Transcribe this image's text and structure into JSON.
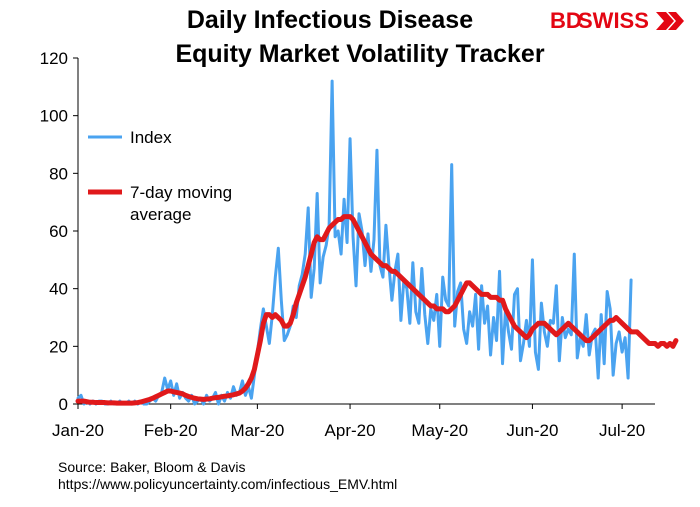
{
  "title_line1": "Daily Infectious Disease",
  "title_line2": "Equity Market Volatility Tracker",
  "logo": {
    "text_bd": "BD",
    "text_swiss": "SWISS",
    "icon": "chevron-arrows-icon",
    "color": "#e30613"
  },
  "source_line1": "Source:  Baker, Bloom & Davis",
  "source_line2": "https://www.policyuncertainty.com/infectious_EMV.html",
  "chart_data": {
    "type": "line",
    "ylim": [
      0,
      120
    ],
    "yticks": [
      0,
      20,
      40,
      60,
      80,
      100,
      120
    ],
    "xticks": [
      {
        "label": "Jan-20",
        "day": 0
      },
      {
        "label": "Feb-20",
        "day": 31
      },
      {
        "label": "Mar-20",
        "day": 60
      },
      {
        "label": "Apr-20",
        "day": 91
      },
      {
        "label": "May-20",
        "day": 121
      },
      {
        "label": "Jun-20",
        "day": 152
      },
      {
        "label": "Jul-20",
        "day": 182
      }
    ],
    "xrange": [
      0,
      193
    ],
    "grid": false,
    "legend_position": "upper-left",
    "series": [
      {
        "name": "Index",
        "color": "#4aa3f0",
        "values": [
          2,
          3,
          0,
          1,
          0,
          1,
          0,
          1,
          1,
          0,
          0,
          1,
          0,
          0,
          1,
          0,
          0,
          1,
          0,
          1,
          0,
          1,
          0,
          0,
          1,
          2,
          1,
          3,
          4,
          9,
          5,
          8,
          3,
          7,
          2,
          4,
          2,
          1,
          3,
          0,
          1,
          2,
          0,
          3,
          1,
          2,
          4,
          0,
          3,
          1,
          4,
          2,
          6,
          3,
          4,
          8,
          3,
          6,
          2,
          10,
          18,
          26,
          33,
          27,
          21,
          31,
          44,
          54,
          36,
          22,
          24,
          27,
          34,
          30,
          41,
          45,
          52,
          68,
          37,
          47,
          73,
          42,
          51,
          55,
          62,
          112,
          58,
          60,
          52,
          71,
          56,
          92,
          58,
          41,
          66,
          60,
          48,
          59,
          46,
          57,
          88,
          48,
          44,
          62,
          48,
          36,
          46,
          52,
          29,
          43,
          40,
          28,
          49,
          32,
          28,
          47,
          31,
          21,
          33,
          29,
          38,
          20,
          44,
          36,
          34,
          83,
          27,
          39,
          42,
          26,
          21,
          32,
          27,
          38,
          19,
          41,
          28,
          34,
          17,
          30,
          22,
          46,
          14,
          33,
          25,
          19,
          38,
          40,
          15,
          21,
          29,
          20,
          50,
          18,
          12,
          35,
          25,
          20,
          29,
          28,
          41,
          15,
          30,
          23,
          26,
          24,
          52,
          16,
          23,
          20,
          31,
          17,
          24,
          26,
          9,
          31,
          14,
          39,
          33,
          10,
          21,
          25,
          18,
          23,
          9,
          43
        ]
      },
      {
        "name": "7-day moving average",
        "color": "#e0191b",
        "values": [
          1,
          1,
          1,
          0.8,
          0.6,
          0.6,
          0.5,
          0.5,
          0.5,
          0.5,
          0.4,
          0.4,
          0.4,
          0.3,
          0.3,
          0.3,
          0.3,
          0.3,
          0.3,
          0.4,
          0.5,
          0.7,
          1,
          1.3,
          1.6,
          2,
          2.5,
          3,
          3.5,
          4,
          4.5,
          4.5,
          4.2,
          4,
          3.8,
          3.5,
          3,
          2.6,
          2.3,
          2,
          1.8,
          1.7,
          1.6,
          1.7,
          1.8,
          2,
          2.2,
          2.3,
          2.5,
          2.7,
          2.8,
          3,
          3.2,
          3.5,
          3.8,
          4.5,
          5.5,
          7,
          9,
          12,
          17,
          22,
          28,
          31,
          31,
          30,
          31,
          30,
          29,
          27,
          27,
          28,
          31,
          35,
          38,
          41,
          44,
          48,
          52,
          56,
          58,
          57,
          57,
          59,
          61,
          62,
          63,
          64,
          64,
          65,
          65,
          65,
          64,
          62,
          60,
          58,
          56,
          54,
          52,
          51,
          50,
          49,
          48,
          48,
          47,
          46,
          46,
          45,
          44,
          43,
          42,
          41,
          40,
          39,
          38,
          37,
          36,
          35,
          34,
          34,
          33,
          33,
          33,
          32,
          32,
          33,
          34,
          36,
          38,
          40,
          42,
          42,
          41,
          40,
          39,
          38,
          38,
          38,
          37,
          37,
          37,
          36,
          36,
          33,
          31,
          29,
          27,
          26,
          25,
          24,
          23,
          24,
          26,
          27,
          28,
          28,
          28,
          27,
          26,
          25,
          24,
          25,
          26,
          27,
          28,
          27,
          26,
          25,
          24,
          23,
          22,
          22,
          23,
          24,
          25,
          26,
          27,
          28,
          29,
          29,
          30,
          29,
          28,
          27,
          26,
          25,
          25,
          25,
          24,
          23,
          22,
          21,
          21,
          21,
          20,
          21,
          21,
          20,
          21,
          20,
          22
        ]
      }
    ]
  }
}
